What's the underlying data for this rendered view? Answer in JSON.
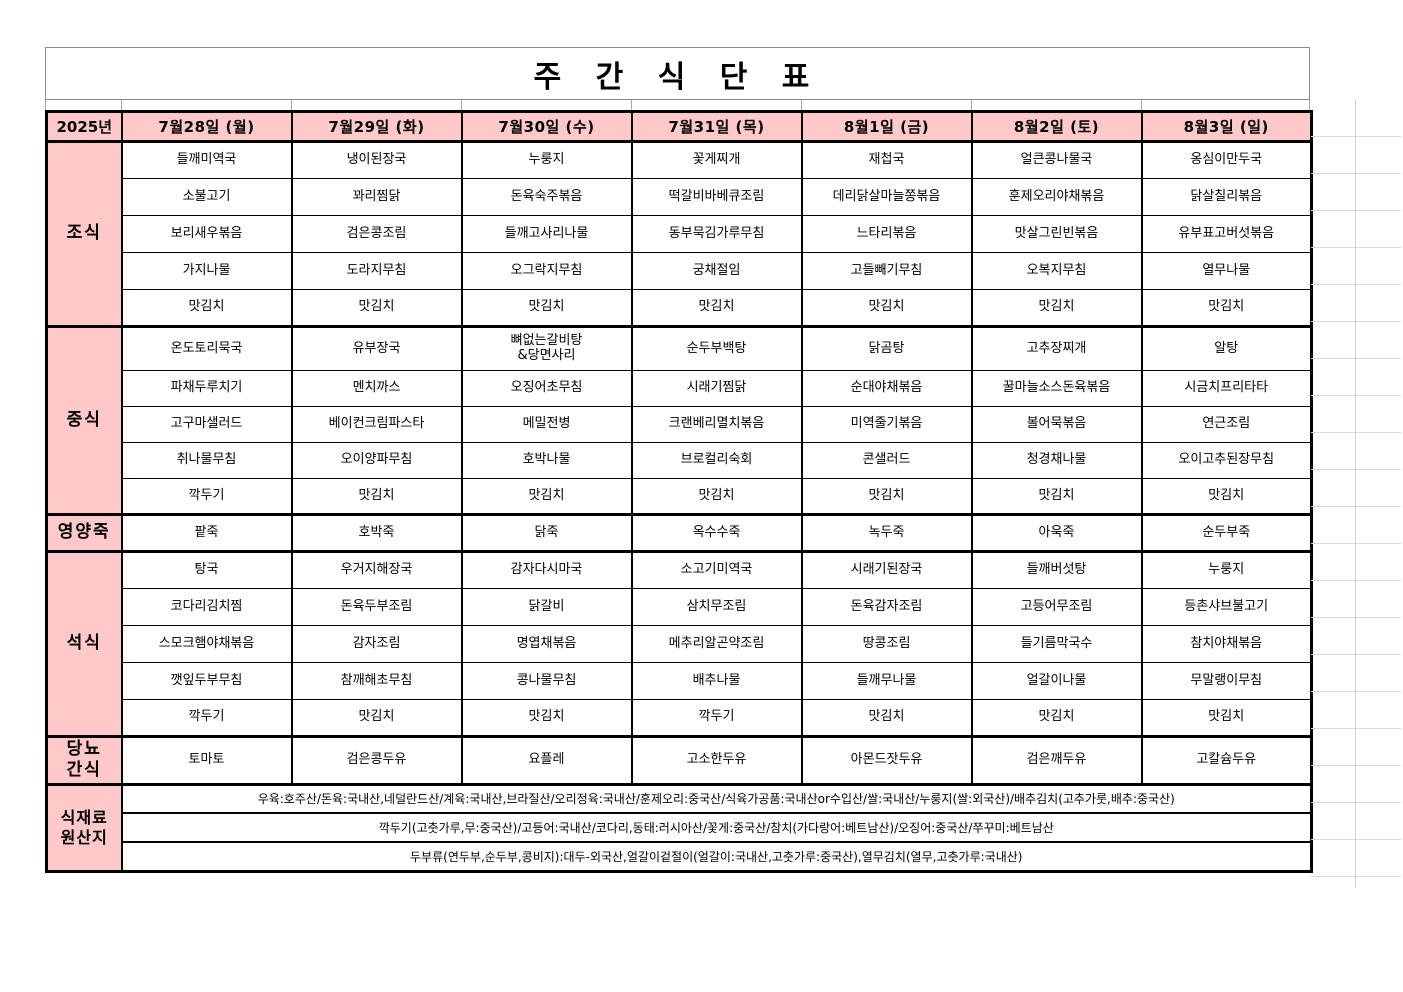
{
  "title": "주 간 식 단 표",
  "colors": {
    "header_pink": "#FFC9C9",
    "border_black": "#000000"
  },
  "table": {
    "year_label": "2025년",
    "days": [
      "7월28일 (월)",
      "7월29일 (화)",
      "7월30일 (수)",
      "7월31일 (목)",
      "8월1일 (금)",
      "8월2일 (토)",
      "8월3일 (일)"
    ],
    "sections": [
      {
        "id": "breakfast",
        "label": "조식",
        "rows": [
          [
            "들깨미역국",
            "냉이된장국",
            "누룽지",
            "꽃게찌개",
            "재첩국",
            "얼큰콩나물국",
            "옹심이만두국"
          ],
          [
            "소불고기",
            "꽈리찜닭",
            "돈육숙주볶음",
            "떡갈비바베큐조림",
            "데리닭살마늘쫑볶음",
            "훈제오리야채볶음",
            "닭살칠리볶음"
          ],
          [
            "보리새우볶음",
            "검은콩조림",
            "들깨고사리나물",
            "동부묵김가루무침",
            "느타리볶음",
            "맛살그린빈볶음",
            "유부표고버섯볶음"
          ],
          [
            "가지나물",
            "도라지무침",
            "오그락지무침",
            "궁채절임",
            "고들빼기무침",
            "오복지무침",
            "열무나물"
          ],
          [
            "맛김치",
            "맛김치",
            "맛김치",
            "맛김치",
            "맛김치",
            "맛김치",
            "맛김치"
          ]
        ]
      },
      {
        "id": "lunch",
        "label": "중식",
        "rows": [
          [
            "온도토리묵국",
            "유부장국",
            "뼈없는갈비탕\n&당면사리",
            "순두부백탕",
            "닭곰탕",
            "고추장찌개",
            "알탕"
          ],
          [
            "파채두루치기",
            "멘치까스",
            "오징어초무침",
            "시래기찜닭",
            "순대야채볶음",
            "꿀마늘소스돈육볶음",
            "시금치프리타타"
          ],
          [
            "고구마샐러드",
            "베이컨크림파스타",
            "메밀전병",
            "크랜베리멸치볶음",
            "미역줄기볶음",
            "볼어묵볶음",
            "연근조림"
          ],
          [
            "취나물무침",
            "오이양파무침",
            "호박나물",
            "브로컬리숙회",
            "콘샐러드",
            "청경채나물",
            "오이고추된장무침"
          ],
          [
            "깍두기",
            "맛김치",
            "맛김치",
            "맛김치",
            "맛김치",
            "맛김치",
            "맛김치"
          ]
        ]
      },
      {
        "id": "porridge",
        "label": "영양죽",
        "rows": [
          [
            "팥죽",
            "호박죽",
            "닭죽",
            "옥수수죽",
            "녹두죽",
            "아욱죽",
            "순두부죽"
          ]
        ]
      },
      {
        "id": "dinner",
        "label": "석식",
        "rows": [
          [
            "탕국",
            "우거지해장국",
            "감자다시마국",
            "소고기미역국",
            "시래기된장국",
            "들깨버섯탕",
            "누룽지"
          ],
          [
            "코다리김치찜",
            "돈육두부조림",
            "닭갈비",
            "삼치무조림",
            "돈육감자조림",
            "고등어무조림",
            "등촌샤브불고기"
          ],
          [
            "스모크햄야채볶음",
            "감자조림",
            "명엽채볶음",
            "메추리알곤약조림",
            "땅콩조림",
            "들기름막국수",
            "참치야채볶음"
          ],
          [
            "깻잎두부무침",
            "참깨해초무침",
            "콩나물무침",
            "배추나물",
            "들깨무나물",
            "얼갈이나물",
            "무말랭이무침"
          ],
          [
            "깍두기",
            "맛김치",
            "맛김치",
            "깍두기",
            "맛김치",
            "맛김치",
            "맛김치"
          ]
        ]
      },
      {
        "id": "snack",
        "label": "당뇨\n간식",
        "rows": [
          [
            "토마토",
            "검은콩두유",
            "요플레",
            "고소한두유",
            "아몬드잣두유",
            "검은깨두유",
            "고칼슘두유"
          ]
        ]
      }
    ],
    "origin": {
      "label": "식재료\n원산지",
      "lines": [
        "우육:호주산/돈육:국내산,네덜란드산/계육:국내산,브라질산/오리정육:국내산/훈제오리:중국산/식육가공품:국내산or수입산/쌀:국내산/누룽지(쌀:외국산)/배추김치(고추가룻,배추:중국산)",
        "깍두기(고춧가루,무:중국산)/고등어:국내산/코다리,동태:러시아산/꽃게:중국산/참치(가다랑어:베트남산)/오징어:중국산/쭈꾸미:베트남산",
        "두부류(연두부,순두부,콩비지):대두-외국산,얼갈이겉절이(얼갈이:국내산,고춧가루:중국산),열무김치(열무,고춧가루:국내산)"
      ]
    }
  }
}
